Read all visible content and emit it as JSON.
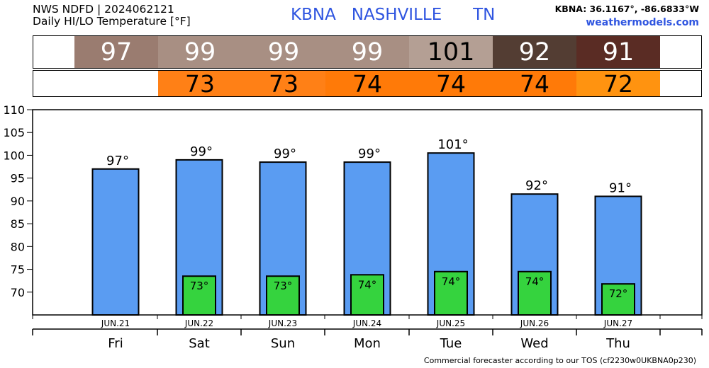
{
  "header": {
    "line1": "NWS NDFD | 2024062121",
    "line2": "Daily HI/LO Temperature [°F]",
    "station": "KBNA   NASHVILLE      TN",
    "coords": "KBNA: 36.1167°, -86.6833°W",
    "site": "weathermodels.com"
  },
  "strips": {
    "high": [
      {
        "label": "97",
        "color": "#9a7c70"
      },
      {
        "label": "99",
        "color": "#a88f83"
      },
      {
        "label": "99",
        "color": "#a88f83"
      },
      {
        "label": "99",
        "color": "#a88f83"
      },
      {
        "label": "101",
        "color": "#b49f94"
      },
      {
        "label": "92",
        "color": "#533d33"
      },
      {
        "label": "91",
        "color": "#5a2c24"
      }
    ],
    "low": [
      {
        "label": "",
        "color": "#ffffff"
      },
      {
        "label": "73",
        "color": "#ff8016"
      },
      {
        "label": "73",
        "color": "#ff8016"
      },
      {
        "label": "74",
        "color": "#ff7a08"
      },
      {
        "label": "74",
        "color": "#ff7a08"
      },
      {
        "label": "74",
        "color": "#ff7a08"
      },
      {
        "label": "72",
        "color": "#ff9310"
      }
    ]
  },
  "chart_data": {
    "type": "bar",
    "categories": [
      "JUN.21",
      "JUN.22",
      "JUN.23",
      "JUN.24",
      "JUN.25",
      "JUN.26",
      "JUN.27"
    ],
    "weekdays": [
      "Fri",
      "Sat",
      "Sun",
      "Mon",
      "Tue",
      "Wed",
      "Thu"
    ],
    "series": [
      {
        "values": [
          97,
          99,
          98.5,
          98.5,
          100.5,
          91.5,
          91
        ],
        "color": "#5a9cf2",
        "labels": [
          "97°",
          "99°",
          "99°",
          "99°",
          "101°",
          "92°",
          "91°"
        ]
      },
      {
        "values": [
          null,
          73.5,
          73.5,
          73.8,
          74.5,
          74.5,
          71.8
        ],
        "color": "#35d33e",
        "labels": [
          "",
          "73°",
          "73°",
          "74°",
          "74°",
          "74°",
          "72°"
        ]
      }
    ],
    "ylim": [
      65,
      110
    ],
    "yticks": [
      70,
      75,
      80,
      85,
      90,
      95,
      100,
      105,
      110
    ]
  },
  "footer": "Commercial forecaster according to our TOS (cf2230w0UKBNA0p230)"
}
